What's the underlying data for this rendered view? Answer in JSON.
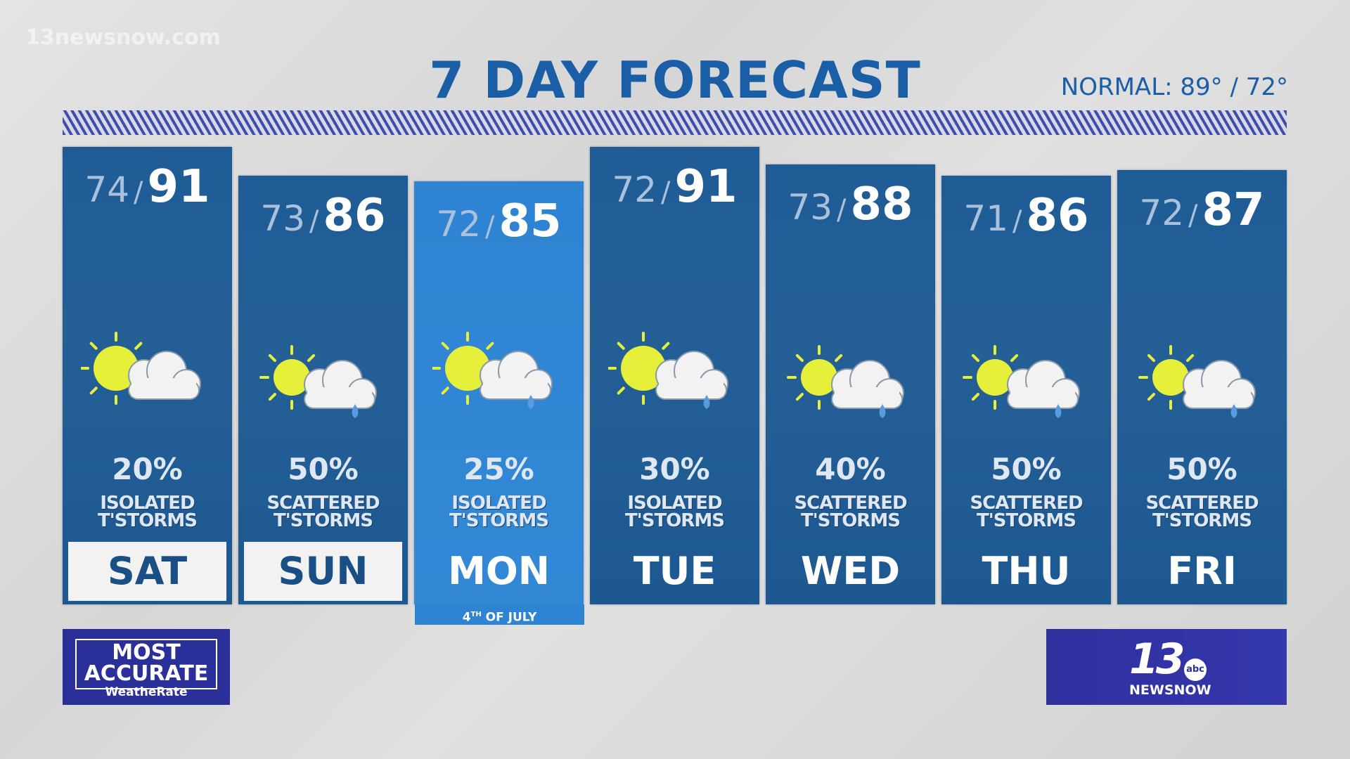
{
  "watermark": "13newsnow.com",
  "title": "7 DAY FORECAST",
  "normal": "NORMAL: 89° / 72°",
  "temp_separator": "/",
  "days": [
    {
      "low": 74,
      "high": 91,
      "chance": "20%",
      "condition": [
        "ISOLATED",
        "T'STORMS"
      ],
      "day": "SAT"
    },
    {
      "low": 73,
      "high": 86,
      "chance": "50%",
      "condition": [
        "SCATTERED",
        "T'STORMS"
      ],
      "day": "SUN"
    },
    {
      "low": 72,
      "high": 85,
      "chance": "25%",
      "condition": [
        "ISOLATED",
        "T'STORMS"
      ],
      "day": "MON"
    },
    {
      "low": 72,
      "high": 91,
      "chance": "30%",
      "condition": [
        "ISOLATED",
        "T'STORMS"
      ],
      "day": "TUE"
    },
    {
      "low": 73,
      "high": 88,
      "chance": "40%",
      "condition": [
        "SCATTERED",
        "T'STORMS"
      ],
      "day": "WED"
    },
    {
      "low": 71,
      "high": 86,
      "chance": "50%",
      "condition": [
        "SCATTERED",
        "T'STORMS"
      ],
      "day": "THU"
    },
    {
      "low": 72,
      "high": 87,
      "chance": "50%",
      "condition": [
        "SCATTERED",
        "T'STORMS"
      ],
      "day": "FRI"
    }
  ],
  "holiday_badge": {
    "number": "4",
    "suffix": "TH",
    "text": "OF JULY"
  },
  "left_logo": {
    "line1": "MOST",
    "line2": "ACCURATE",
    "line3": "WeatheRate"
  },
  "right_logo": {
    "number": "13",
    "network": "abc",
    "name": "NEWSNOW"
  }
}
